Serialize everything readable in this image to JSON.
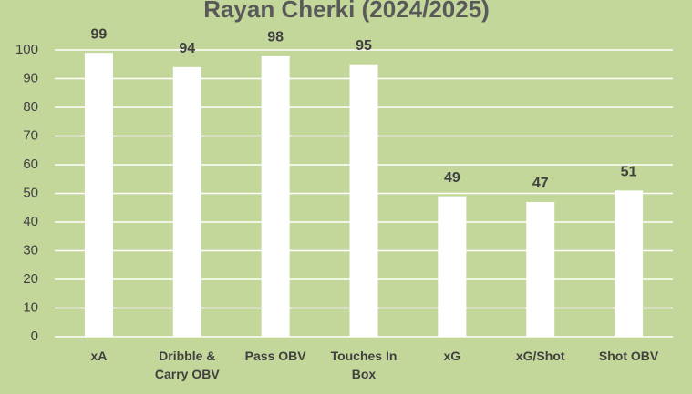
{
  "chart_data": {
    "type": "bar",
    "title": "Rayan Cherki (2024/2025)",
    "categories": [
      "xA",
      "Dribble & Carry OBV",
      "Pass OBV",
      "Touches In Box",
      "xG",
      "xG/Shot",
      "Shot OBV"
    ],
    "values": [
      99,
      94,
      98,
      95,
      49,
      47,
      51
    ],
    "color": "#ffffff",
    "ylim": [
      0,
      100
    ],
    "yticks": [
      0,
      10,
      20,
      30,
      40,
      50,
      60,
      70,
      80,
      90,
      100
    ],
    "grid": true,
    "data_labels": true
  }
}
